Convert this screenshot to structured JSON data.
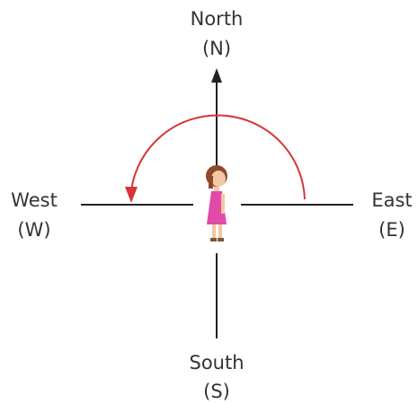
{
  "directions": {
    "north": {
      "name": "North",
      "abbr": "(N)"
    },
    "west": {
      "name": "West",
      "abbr": "(W)"
    },
    "east": {
      "name": "East",
      "abbr": "(E)"
    },
    "south": {
      "name": "South",
      "abbr": "(S)"
    }
  }
}
